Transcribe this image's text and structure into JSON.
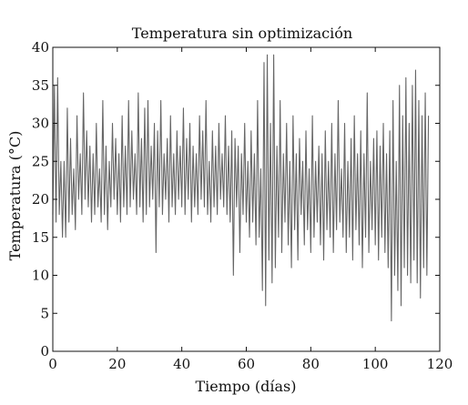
{
  "chart_data": {
    "type": "line",
    "title": "Temperatura sin optimización",
    "xlabel": "Tiempo (días)",
    "ylabel": "Temperatura (°C)",
    "xlim": [
      0,
      120
    ],
    "ylim": [
      0,
      40
    ],
    "xticks": [
      "0",
      "20",
      "40",
      "60",
      "80",
      "100",
      "120"
    ],
    "yticks": [
      "0",
      "5",
      "10",
      "15",
      "20",
      "25",
      "30",
      "35",
      "40"
    ],
    "grid": false,
    "legend": "none",
    "series": [
      {
        "color": "#666666",
        "sampling_step_days": 0.5,
        "x_start": 0,
        "values": [
          18,
          35,
          17,
          36,
          18,
          25,
          15,
          25,
          15,
          32,
          17,
          28,
          18,
          24,
          16,
          31,
          20,
          26,
          18,
          34,
          20,
          29,
          19,
          27,
          17,
          26,
          18,
          30,
          19,
          24,
          17,
          33,
          18,
          27,
          16,
          25,
          19,
          30,
          20,
          28,
          18,
          26,
          17,
          31,
          19,
          27,
          18,
          33,
          19,
          29,
          20,
          26,
          18,
          34,
          19,
          28,
          17,
          32,
          18,
          33,
          19,
          27,
          20,
          30,
          13,
          29,
          19,
          33,
          18,
          26,
          20,
          28,
          17,
          31,
          19,
          26,
          18,
          29,
          20,
          27,
          19,
          32,
          18,
          28,
          20,
          30,
          17,
          27,
          19,
          26,
          18,
          31,
          20,
          29,
          19,
          33,
          18,
          25,
          17,
          29,
          19,
          27,
          18,
          30,
          20,
          26,
          19,
          31,
          18,
          27,
          17,
          29,
          10,
          28,
          19,
          27,
          13,
          26,
          18,
          30,
          17,
          25,
          15,
          29,
          17,
          26,
          14,
          33,
          15,
          24,
          8,
          38,
          6,
          39,
          12,
          30,
          9,
          39,
          11,
          27,
          15,
          33,
          13,
          26,
          17,
          30,
          14,
          25,
          11,
          31,
          16,
          26,
          12,
          28,
          18,
          25,
          14,
          29,
          16,
          24,
          13,
          31,
          15,
          25,
          17,
          27,
          14,
          26,
          12,
          29,
          16,
          25,
          15,
          30,
          13,
          26,
          16,
          33,
          17,
          24,
          15,
          30,
          13,
          25,
          15,
          28,
          12,
          31,
          16,
          26,
          14,
          29,
          11,
          26,
          15,
          34,
          13,
          25,
          16,
          28,
          14,
          29,
          12,
          27,
          15,
          30,
          13,
          26,
          11,
          29,
          4,
          33,
          10,
          25,
          8,
          35,
          6,
          31,
          11,
          36,
          10,
          30,
          9,
          35,
          12,
          37,
          9,
          33,
          7,
          31,
          11,
          34,
          10,
          31
        ]
      }
    ]
  }
}
